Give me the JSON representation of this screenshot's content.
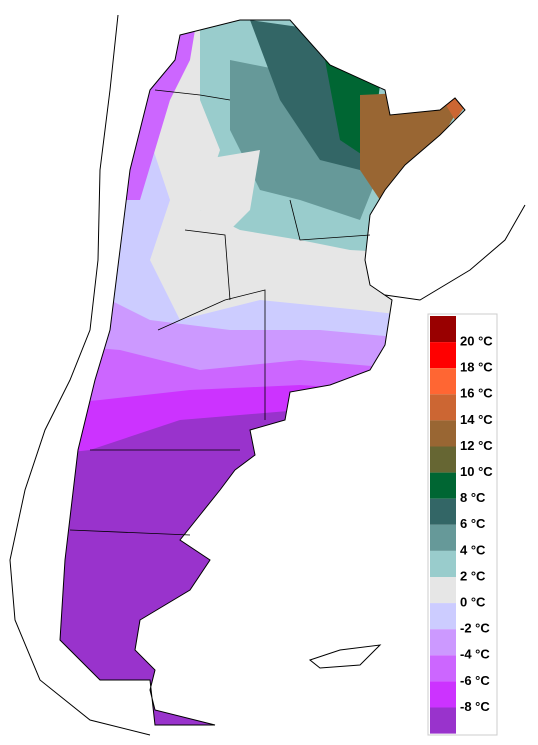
{
  "legend": {
    "colors": [
      "#990000",
      "#ff0000",
      "#ff6633",
      "#cc6633",
      "#996633",
      "#666633",
      "#006633",
      "#336666",
      "#669999",
      "#99cccc",
      "#e6e6e6",
      "#ccccff",
      "#cc99ff",
      "#cc66ff",
      "#cc33ff",
      "#9933cc"
    ],
    "labels": [
      "20 °C",
      "18 °C",
      "16 °C",
      "14 °C",
      "12 °C",
      "10 °C",
      "8 °C",
      "6 °C",
      "4 °C",
      "2 °C",
      "0 °C",
      "-2 °C",
      "-4 °C",
      "-6 °C",
      "-8 °C"
    ]
  }
}
